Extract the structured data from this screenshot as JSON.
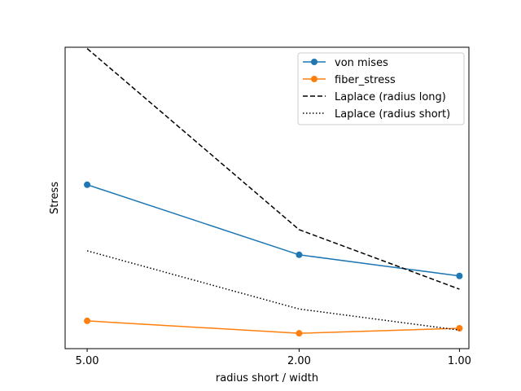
{
  "chart_data": {
    "type": "line",
    "xscale": "log",
    "xreversed": true,
    "xlabel": "radius short / width",
    "ylabel": "Stress",
    "x_ticks": [
      5,
      2,
      1
    ],
    "x_tick_labels": [
      "5.00",
      "2.00",
      "1.00"
    ],
    "y_ticks_shown": false,
    "grid": false,
    "legend_position": "upper right",
    "xlim": [
      5.5,
      0.96
    ],
    "ylim": [
      -0.07,
      1.07
    ],
    "series": [
      {
        "name": "von mises",
        "color": "#1f77b4",
        "linestyle": "solid",
        "marker": "circle",
        "x": [
          5,
          2,
          1
        ],
        "y": [
          0.55,
          0.285,
          0.205
        ]
      },
      {
        "name": "fiber_stress",
        "color": "#ff7f0e",
        "linestyle": "solid",
        "marker": "circle",
        "x": [
          5,
          2,
          1
        ],
        "y": [
          0.035,
          -0.012,
          0.007
        ]
      },
      {
        "name": "Laplace (radius long)",
        "color": "#000000",
        "linestyle": "dashed",
        "marker": "none",
        "x": [
          5,
          2,
          1
        ],
        "y": [
          1.065,
          0.38,
          0.155
        ]
      },
      {
        "name": "Laplace (radius short)",
        "color": "#000000",
        "linestyle": "dotted",
        "marker": "none",
        "x": [
          5,
          2,
          1
        ],
        "y": [
          0.3,
          0.08,
          0.0
        ]
      }
    ]
  }
}
